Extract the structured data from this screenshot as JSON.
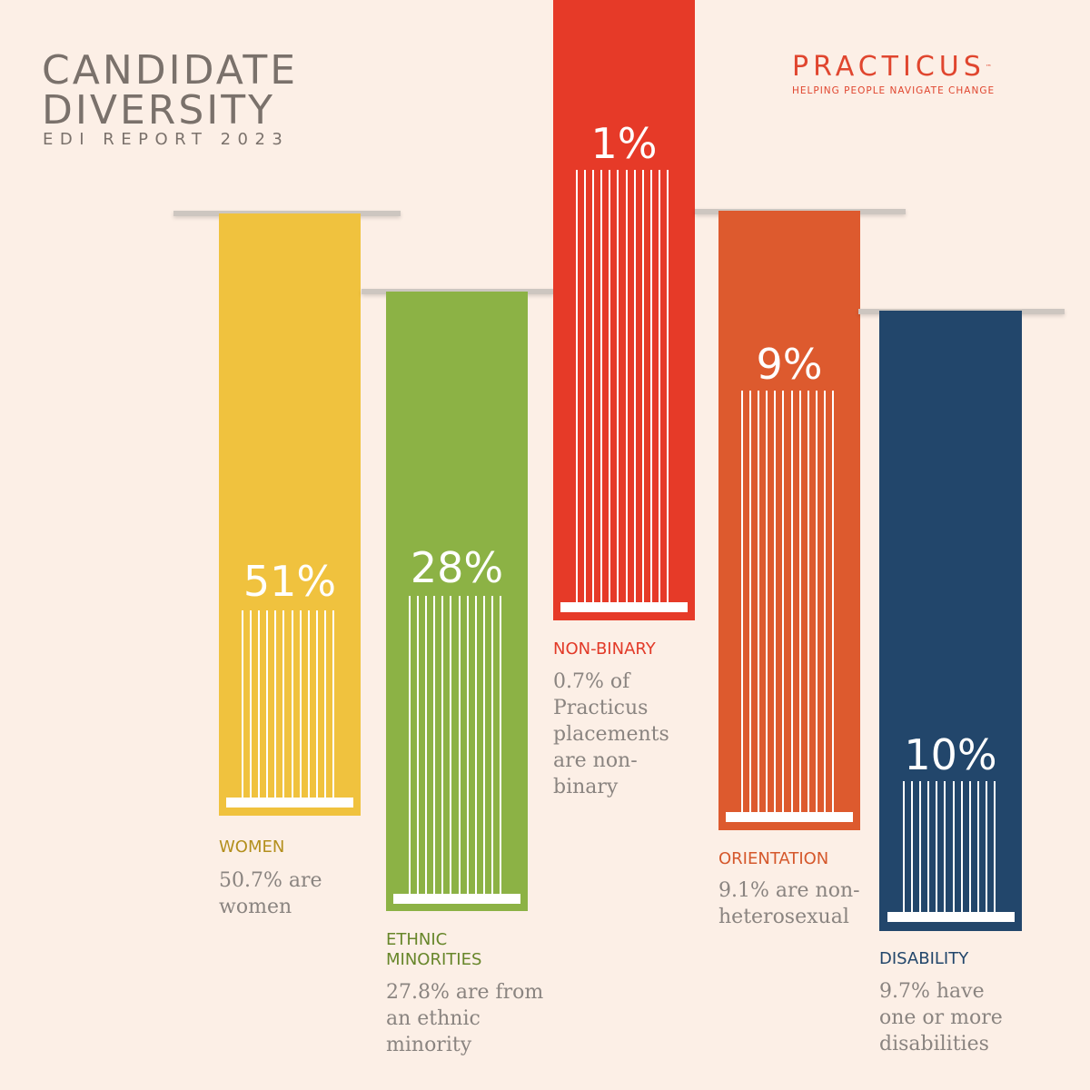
{
  "header": {
    "title_line1": "CANDIDATE",
    "title_line2": "DIVERSITY",
    "subtitle": "EDI REPORT 2023"
  },
  "logo": {
    "name": "PRACTICUS",
    "trademark": "™",
    "tagline": "HELPING PEOPLE NAVIGATE CHANGE"
  },
  "chart_data": {
    "type": "bar",
    "categories": [
      "WOMEN",
      "ETHNIC MINORITIES",
      "NON-BINARY",
      "ORIENTATION",
      "DISABILITY"
    ],
    "values": [
      51,
      28,
      1,
      9,
      10
    ],
    "value_labels": [
      "51%",
      "28%",
      "1%",
      "9%",
      "10%"
    ],
    "descriptions": [
      [
        "50.7% are",
        "women"
      ],
      [
        "27.8% are from",
        "an ethnic",
        "minority"
      ],
      [
        "0.7% of",
        "Practicus",
        "placements",
        "are non-",
        "binary"
      ],
      [
        "9.1% are non-",
        "heterosexual"
      ],
      [
        "9.7% have",
        "one or more",
        "disabilities"
      ]
    ],
    "colors": [
      "#f0c23e",
      "#8cb245",
      "#e63a28",
      "#dd5a2e",
      "#22466b"
    ],
    "label_colors": [
      "#b38f1d",
      "#67862a",
      "#e23a28",
      "#d5582c",
      "#22466b"
    ]
  }
}
